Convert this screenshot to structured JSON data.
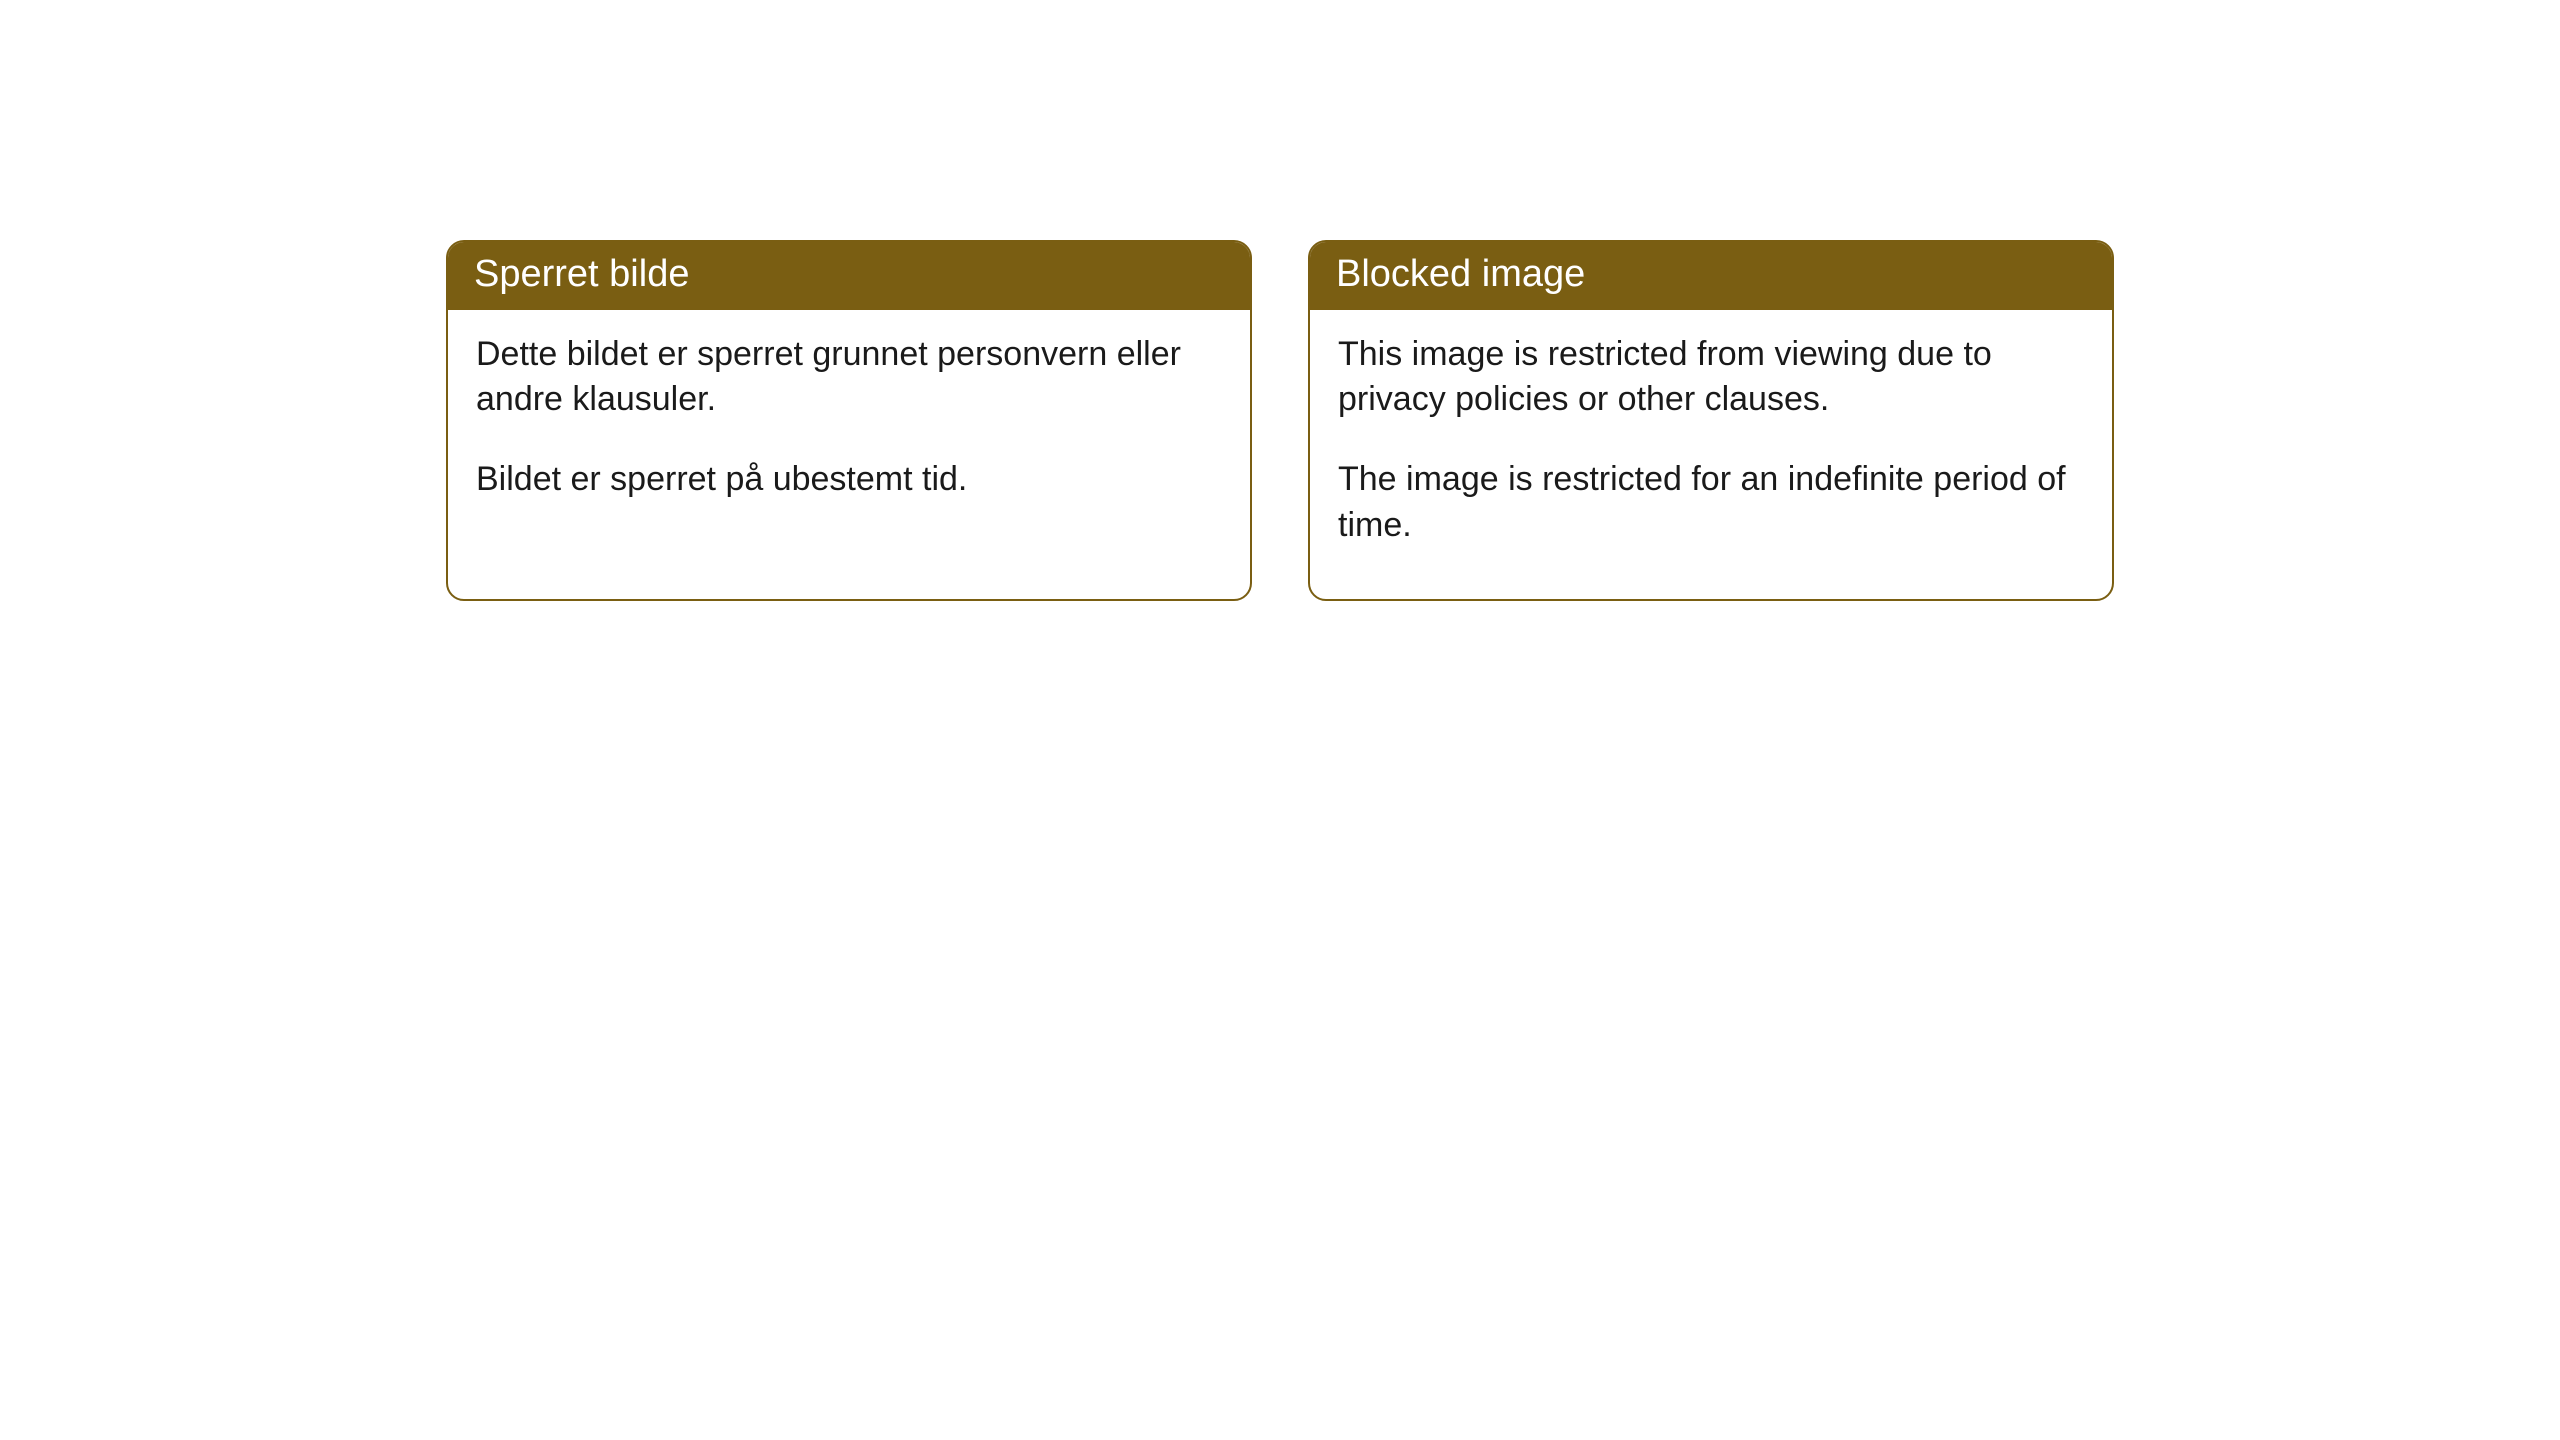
{
  "cards": [
    {
      "title": "Sperret bilde",
      "paragraph1": "Dette bildet er sperret grunnet personvern eller andre klausuler.",
      "paragraph2": "Bildet er sperret på ubestemt tid."
    },
    {
      "title": "Blocked image",
      "paragraph1": "This image is restricted from viewing due to privacy policies or other clauses.",
      "paragraph2": "The image is restricted for an indefinite period of time."
    }
  ],
  "colors": {
    "header_bg": "#7a5e12",
    "header_text": "#ffffff",
    "border": "#7a5e12",
    "body_bg": "#ffffff",
    "body_text": "#1a1a1a"
  }
}
